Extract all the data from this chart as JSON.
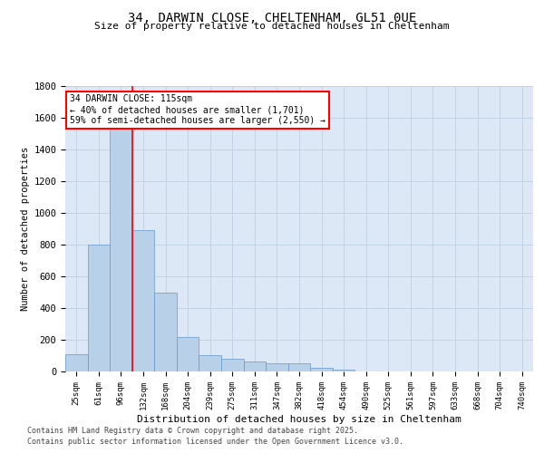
{
  "title1": "34, DARWIN CLOSE, CHELTENHAM, GL51 0UE",
  "title2": "Size of property relative to detached houses in Cheltenham",
  "xlabel": "Distribution of detached houses by size in Cheltenham",
  "ylabel": "Number of detached properties",
  "categories": [
    "25sqm",
    "61sqm",
    "96sqm",
    "132sqm",
    "168sqm",
    "204sqm",
    "239sqm",
    "275sqm",
    "311sqm",
    "347sqm",
    "382sqm",
    "418sqm",
    "454sqm",
    "490sqm",
    "525sqm",
    "561sqm",
    "597sqm",
    "633sqm",
    "668sqm",
    "704sqm",
    "740sqm"
  ],
  "values": [
    110,
    800,
    1540,
    890,
    500,
    220,
    105,
    80,
    65,
    50,
    50,
    25,
    10,
    0,
    0,
    0,
    0,
    0,
    0,
    0,
    0
  ],
  "bar_color": "#b8d0e8",
  "bar_edge_color": "#6699cc",
  "annotation_text": "34 DARWIN CLOSE: 115sqm\n← 40% of detached houses are smaller (1,701)\n59% of semi-detached houses are larger (2,550) →",
  "ylim": [
    0,
    1800
  ],
  "yticks": [
    0,
    200,
    400,
    600,
    800,
    1000,
    1200,
    1400,
    1600,
    1800
  ],
  "footnote1": "Contains HM Land Registry data © Crown copyright and database right 2025.",
  "footnote2": "Contains public sector information licensed under the Open Government Licence v3.0.",
  "bg_color": "#ffffff",
  "plot_bg_color": "#dce8f5",
  "grid_color": "#c0cfe0"
}
